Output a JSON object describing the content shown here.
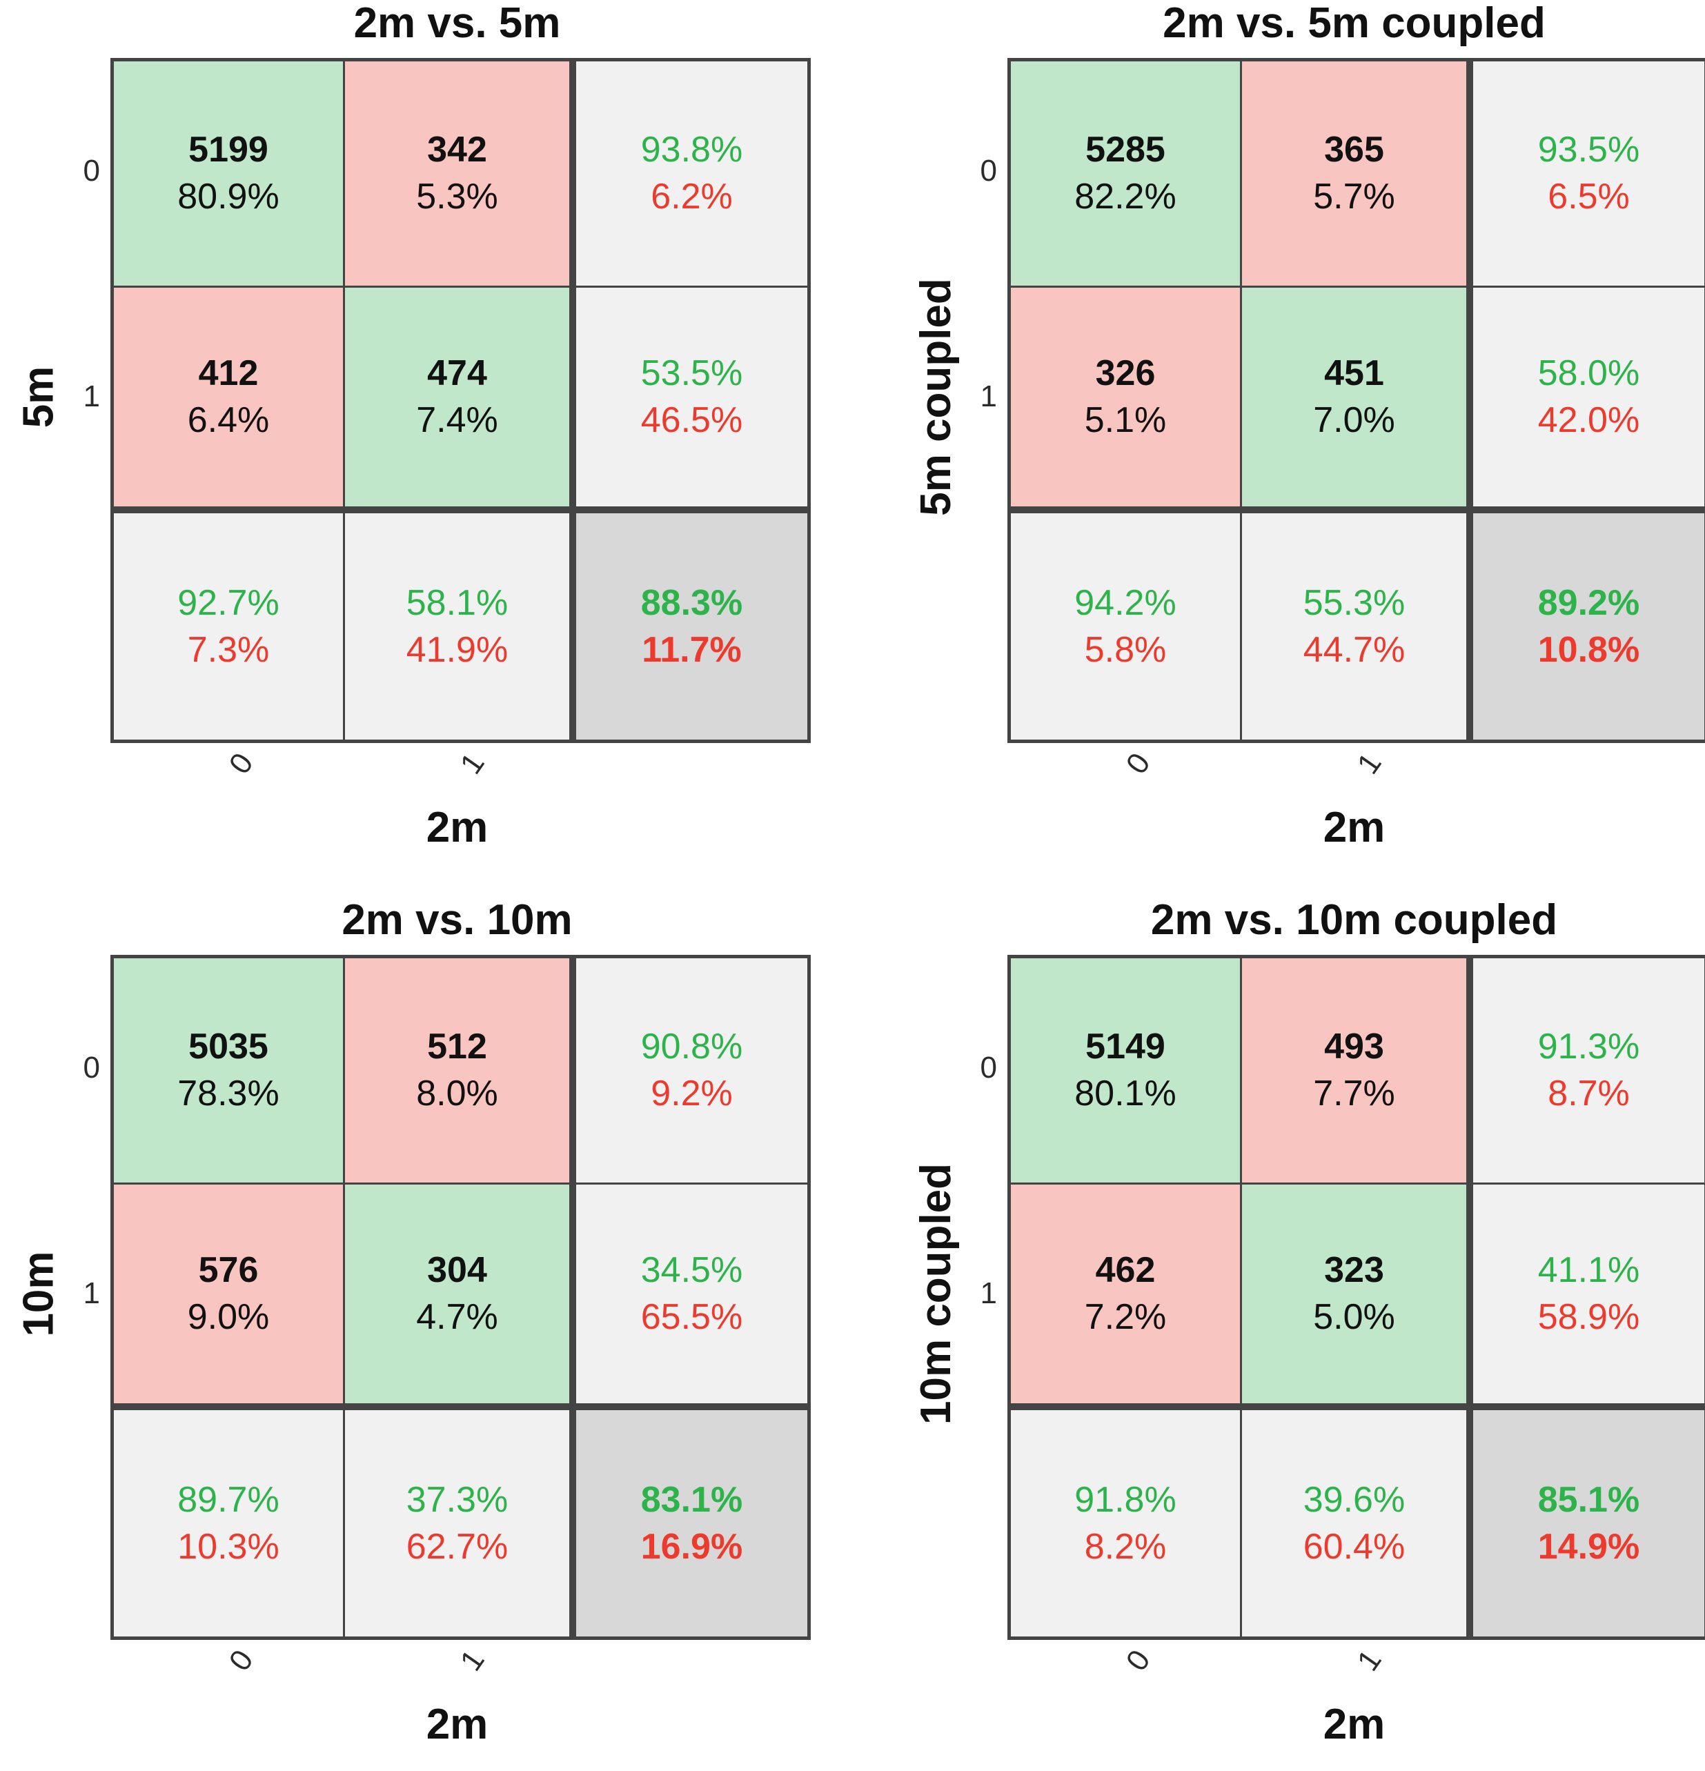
{
  "colors": {
    "cell_green_bg": "#c0e7c9",
    "cell_red_bg": "#f9c5c1",
    "summary_bg": "#f1f1f1",
    "total_bg": "#d8d8d8",
    "grid_border": "#444444",
    "green_text": "#2cb34a",
    "red_text": "#ee3a2c",
    "black_text": "#111111"
  },
  "panels": [
    {
      "title": "2m vs. 5m",
      "xlabel": "2m",
      "ylabel": "5m",
      "xticks": [
        "0",
        "1"
      ],
      "yticks": [
        "0",
        "1"
      ],
      "grid": {
        "r0c0": {
          "count": "5199",
          "pct": "80.9%"
        },
        "r0c1": {
          "count": "342",
          "pct": "5.3%"
        },
        "r0s": {
          "g": "93.8%",
          "r": "6.2%"
        },
        "r1c0": {
          "count": "412",
          "pct": "6.4%"
        },
        "r1c1": {
          "count": "474",
          "pct": "7.4%"
        },
        "r1s": {
          "g": "53.5%",
          "r": "46.5%"
        },
        "c0s": {
          "g": "92.7%",
          "r": "7.3%"
        },
        "c1s": {
          "g": "58.1%",
          "r": "41.9%"
        },
        "tot": {
          "g": "88.3%",
          "r": "11.7%"
        }
      }
    },
    {
      "title": "2m vs. 5m coupled",
      "xlabel": "2m",
      "ylabel": "5m coupled",
      "xticks": [
        "0",
        "1"
      ],
      "yticks": [
        "0",
        "1"
      ],
      "grid": {
        "r0c0": {
          "count": "5285",
          "pct": "82.2%"
        },
        "r0c1": {
          "count": "365",
          "pct": "5.7%"
        },
        "r0s": {
          "g": "93.5%",
          "r": "6.5%"
        },
        "r1c0": {
          "count": "326",
          "pct": "5.1%"
        },
        "r1c1": {
          "count": "451",
          "pct": "7.0%"
        },
        "r1s": {
          "g": "58.0%",
          "r": "42.0%"
        },
        "c0s": {
          "g": "94.2%",
          "r": "5.8%"
        },
        "c1s": {
          "g": "55.3%",
          "r": "44.7%"
        },
        "tot": {
          "g": "89.2%",
          "r": "10.8%"
        }
      }
    },
    {
      "title": "2m vs. 10m",
      "xlabel": "2m",
      "ylabel": "10m",
      "xticks": [
        "0",
        "1"
      ],
      "yticks": [
        "0",
        "1"
      ],
      "grid": {
        "r0c0": {
          "count": "5035",
          "pct": "78.3%"
        },
        "r0c1": {
          "count": "512",
          "pct": "8.0%"
        },
        "r0s": {
          "g": "90.8%",
          "r": "9.2%"
        },
        "r1c0": {
          "count": "576",
          "pct": "9.0%"
        },
        "r1c1": {
          "count": "304",
          "pct": "4.7%"
        },
        "r1s": {
          "g": "34.5%",
          "r": "65.5%"
        },
        "c0s": {
          "g": "89.7%",
          "r": "10.3%"
        },
        "c1s": {
          "g": "37.3%",
          "r": "62.7%"
        },
        "tot": {
          "g": "83.1%",
          "r": "16.9%"
        }
      }
    },
    {
      "title": "2m vs. 10m coupled",
      "xlabel": "2m",
      "ylabel": "10m coupled",
      "xticks": [
        "0",
        "1"
      ],
      "yticks": [
        "0",
        "1"
      ],
      "grid": {
        "r0c0": {
          "count": "5149",
          "pct": "80.1%"
        },
        "r0c1": {
          "count": "493",
          "pct": "7.7%"
        },
        "r0s": {
          "g": "91.3%",
          "r": "8.7%"
        },
        "r1c0": {
          "count": "462",
          "pct": "7.2%"
        },
        "r1c1": {
          "count": "323",
          "pct": "5.0%"
        },
        "r1s": {
          "g": "41.1%",
          "r": "58.9%"
        },
        "c0s": {
          "g": "91.8%",
          "r": "8.2%"
        },
        "c1s": {
          "g": "39.6%",
          "r": "60.4%"
        },
        "tot": {
          "g": "85.1%",
          "r": "14.9%"
        }
      }
    }
  ],
  "chart_data": [
    {
      "type": "heatmap",
      "subtype": "confusion-matrix",
      "title": "2m vs. 5m",
      "xlabel": "2m",
      "ylabel": "5m",
      "classes": [
        "0",
        "1"
      ],
      "counts": [
        [
          5199,
          342
        ],
        [
          412,
          474
        ]
      ],
      "count_pct_of_total": [
        [
          80.9,
          5.3
        ],
        [
          6.4,
          7.4
        ]
      ],
      "row_summary_pct_correct_incorrect": [
        [
          93.8,
          6.2
        ],
        [
          53.5,
          46.5
        ]
      ],
      "col_summary_pct_correct_incorrect": [
        [
          92.7,
          7.3
        ],
        [
          58.1,
          41.9
        ]
      ],
      "overall_pct_correct_incorrect": [
        88.3,
        11.7
      ]
    },
    {
      "type": "heatmap",
      "subtype": "confusion-matrix",
      "title": "2m vs. 5m coupled",
      "xlabel": "2m",
      "ylabel": "5m coupled",
      "classes": [
        "0",
        "1"
      ],
      "counts": [
        [
          5285,
          365
        ],
        [
          326,
          451
        ]
      ],
      "count_pct_of_total": [
        [
          82.2,
          5.7
        ],
        [
          5.1,
          7.0
        ]
      ],
      "row_summary_pct_correct_incorrect": [
        [
          93.5,
          6.5
        ],
        [
          58.0,
          42.0
        ]
      ],
      "col_summary_pct_correct_incorrect": [
        [
          94.2,
          5.8
        ],
        [
          55.3,
          44.7
        ]
      ],
      "overall_pct_correct_incorrect": [
        89.2,
        10.8
      ]
    },
    {
      "type": "heatmap",
      "subtype": "confusion-matrix",
      "title": "2m vs. 10m",
      "xlabel": "2m",
      "ylabel": "10m",
      "classes": [
        "0",
        "1"
      ],
      "counts": [
        [
          5035,
          512
        ],
        [
          576,
          304
        ]
      ],
      "count_pct_of_total": [
        [
          78.3,
          8.0
        ],
        [
          9.0,
          4.7
        ]
      ],
      "row_summary_pct_correct_incorrect": [
        [
          90.8,
          9.2
        ],
        [
          34.5,
          65.5
        ]
      ],
      "col_summary_pct_correct_incorrect": [
        [
          89.7,
          10.3
        ],
        [
          37.3,
          62.7
        ]
      ],
      "overall_pct_correct_incorrect": [
        83.1,
        16.9
      ]
    },
    {
      "type": "heatmap",
      "subtype": "confusion-matrix",
      "title": "2m vs. 10m coupled",
      "xlabel": "2m",
      "ylabel": "10m coupled",
      "classes": [
        "0",
        "1"
      ],
      "counts": [
        [
          5149,
          493
        ],
        [
          462,
          323
        ]
      ],
      "count_pct_of_total": [
        [
          80.1,
          7.7
        ],
        [
          7.2,
          5.0
        ]
      ],
      "row_summary_pct_correct_incorrect": [
        [
          91.3,
          8.7
        ],
        [
          41.1,
          58.9
        ]
      ],
      "col_summary_pct_correct_incorrect": [
        [
          91.8,
          8.2
        ],
        [
          39.6,
          60.4
        ]
      ],
      "overall_pct_correct_incorrect": [
        85.1,
        14.9
      ]
    }
  ]
}
